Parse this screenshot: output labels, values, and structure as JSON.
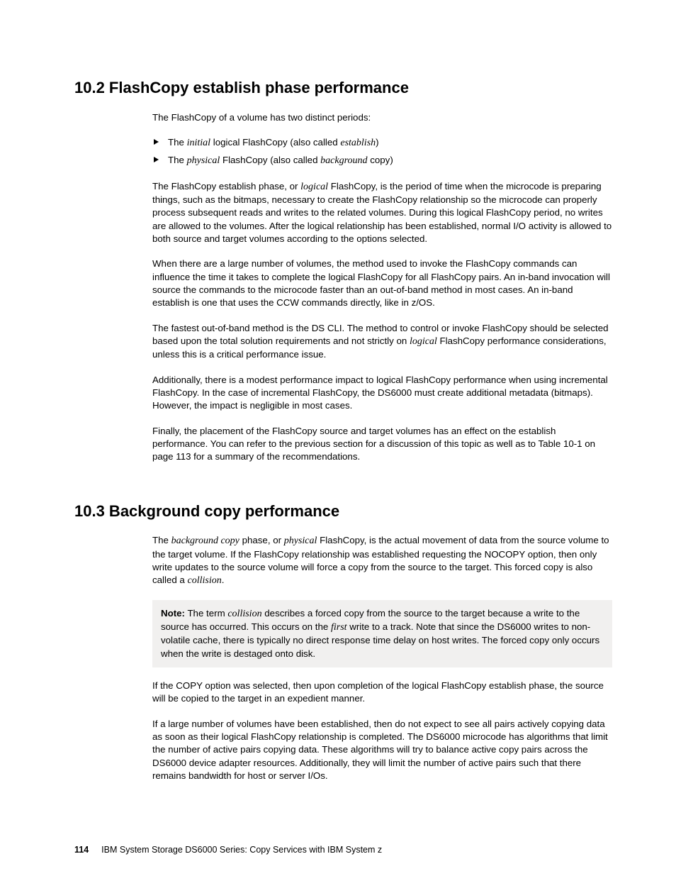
{
  "section1": {
    "heading": "10.2  FlashCopy establish phase performance",
    "intro": "The FlashCopy of a volume has two distinct periods:",
    "bullets": [
      {
        "pre": "The ",
        "it1": "initial",
        "mid": " logical FlashCopy (also called ",
        "it2": "establish",
        "post": ")"
      },
      {
        "pre": "The ",
        "it1": "physical",
        "mid": " FlashCopy (also called ",
        "it2": "background",
        "post": " copy)"
      }
    ],
    "p1_a": "The FlashCopy establish phase, or ",
    "p1_it": "logical",
    "p1_b": " FlashCopy, is the period of time when the microcode is preparing things, such as the bitmaps, necessary to create the FlashCopy relationship so the microcode can properly process subsequent reads and writes to the related volumes. During this logical FlashCopy period, no writes are allowed to the volumes. After the logical relationship has been established, normal I/O activity is allowed to both source and target volumes according to the options selected.",
    "p2": "When there are a large number of volumes, the method used to invoke the FlashCopy commands can influence the time it takes to complete the logical FlashCopy for all FlashCopy pairs. An in-band invocation will source the commands to the microcode faster than an out-of-band method in most cases. An in-band establish is one that uses the CCW commands directly, like in z/OS.",
    "p3_a": "The fastest out-of-band method is the DS CLI. The method to control or invoke FlashCopy should be selected based upon the total solution requirements and not strictly on ",
    "p3_it": "logical",
    "p3_b": " FlashCopy performance considerations, unless this is a critical performance issue.",
    "p4": "Additionally, there is a modest performance impact to logical FlashCopy performance when using incremental FlashCopy. In the case of incremental FlashCopy, the DS6000 must create additional metadata (bitmaps). However, the impact is negligible in most cases.",
    "p5": "Finally, the placement of the FlashCopy source and target volumes has an effect on the establish performance. You can refer to the previous section for a discussion of this topic as well as to Table 10-1 on page 113 for a summary of the recommendations."
  },
  "section2": {
    "heading": "10.3  Background copy performance",
    "p1_a": "The ",
    "p1_it1": "background copy",
    "p1_b": " phase, or ",
    "p1_it2": "physical",
    "p1_c": " FlashCopy, is the actual movement of data from the source volume to the target volume. If the FlashCopy relationship was established requesting the NOCOPY option, then only write updates to the source volume will force a copy from the source to the target. This forced copy is also called a ",
    "p1_it3": "collision",
    "p1_d": ".",
    "note_label": "Note:",
    "note_a": " The term ",
    "note_it1": "collision",
    "note_b": " describes a forced copy from the source to the target because a write to the source has occurred. This occurs on the ",
    "note_it2": "first",
    "note_c": " write to a track. Note that since the DS6000 writes to non-volatile cache, there is typically no direct response time delay on host writes. The forced copy only occurs when the write is destaged onto disk.",
    "p2": "If the COPY option was selected, then upon completion of the logical FlashCopy establish phase, the source will be copied to the target in an expedient manner.",
    "p3": "If a large number of volumes have been established, then do not expect to see all pairs actively copying data as soon as their logical FlashCopy relationship is completed. The DS6000 microcode has algorithms that limit the number of active pairs copying data. These algorithms will try to balance active copy pairs across the DS6000 device adapter resources. Additionally, they will limit the number of active pairs such that there remains bandwidth for host or server I/Os."
  },
  "footer": {
    "page": "114",
    "title": "IBM System Storage DS6000 Series: Copy Services with IBM System z"
  },
  "colors": {
    "background": "#ffffff",
    "text": "#000000",
    "note_bg": "#f1f0ef"
  }
}
